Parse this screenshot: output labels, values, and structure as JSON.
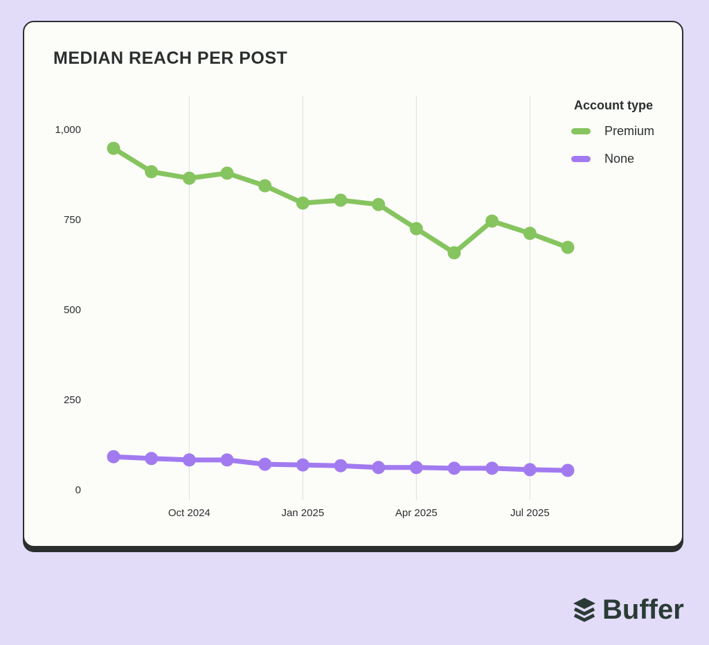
{
  "chart_data": {
    "type": "line",
    "title": "MEDIAN REACH PER POST",
    "xlabel": "",
    "ylabel": "",
    "x": [
      "Aug 2024",
      "Sep 2024",
      "Oct 2024",
      "Nov 2024",
      "Dec 2024",
      "Jan 2025",
      "Feb 2025",
      "Mar 2025",
      "Apr 2025",
      "May 2025",
      "Jun 2025",
      "Jul 2025",
      "Aug 2025"
    ],
    "x_ticks": [
      {
        "index": 2,
        "label": "Oct 2024"
      },
      {
        "index": 5,
        "label": "Jan 2025"
      },
      {
        "index": 8,
        "label": "Apr 2025"
      },
      {
        "index": 11,
        "label": "Jul 2025"
      }
    ],
    "y_ticks": [
      0,
      250,
      500,
      750,
      1000
    ],
    "y_tick_labels": [
      "0",
      "250",
      "500",
      "750",
      "1,000"
    ],
    "ylim": [
      0,
      1000
    ],
    "grid": "vertical",
    "legend": {
      "title": "Account type",
      "placement": "top-right"
    },
    "series": [
      {
        "name": "Premium",
        "color": "#86c45f",
        "values": [
          946,
          881,
          863,
          877,
          842,
          794,
          802,
          790,
          723,
          656,
          744,
          710,
          671
        ]
      },
      {
        "name": "None",
        "color": "#a27af0",
        "values": [
          90,
          85,
          81,
          81,
          69,
          67,
          65,
          60,
          60,
          58,
          58,
          54,
          52
        ]
      }
    ]
  },
  "brand": {
    "name": "Buffer"
  }
}
